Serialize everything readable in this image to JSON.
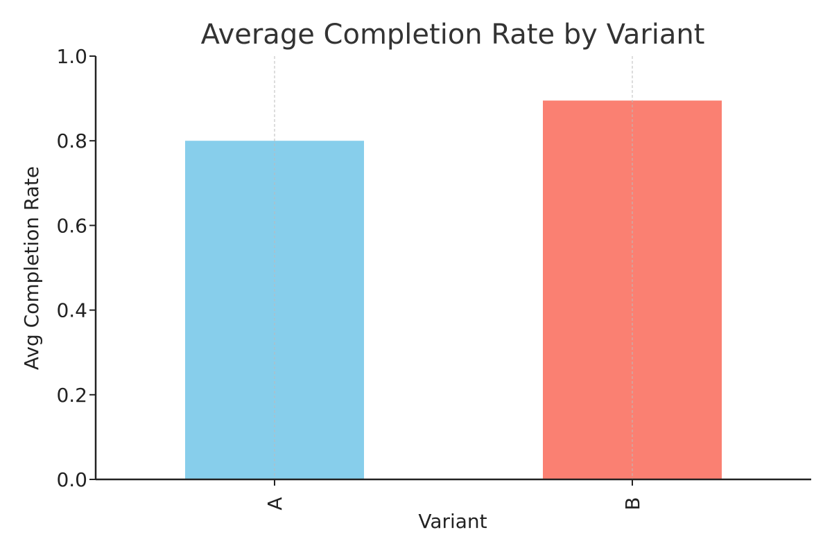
{
  "chart_data": {
    "type": "bar",
    "title": "Average Completion Rate by Variant",
    "xlabel": "Variant",
    "ylabel": "Avg Completion Rate",
    "categories": [
      "A",
      "B"
    ],
    "values": [
      0.8,
      0.895
    ],
    "colors": [
      "#87CEEB",
      "#FA8072"
    ],
    "ylim": [
      0.0,
      1.0
    ],
    "yticks": [
      "0.0",
      "0.2",
      "0.4",
      "0.6",
      "0.8",
      "1.0"
    ],
    "grid": "x-only-dashed",
    "legend": "none"
  }
}
